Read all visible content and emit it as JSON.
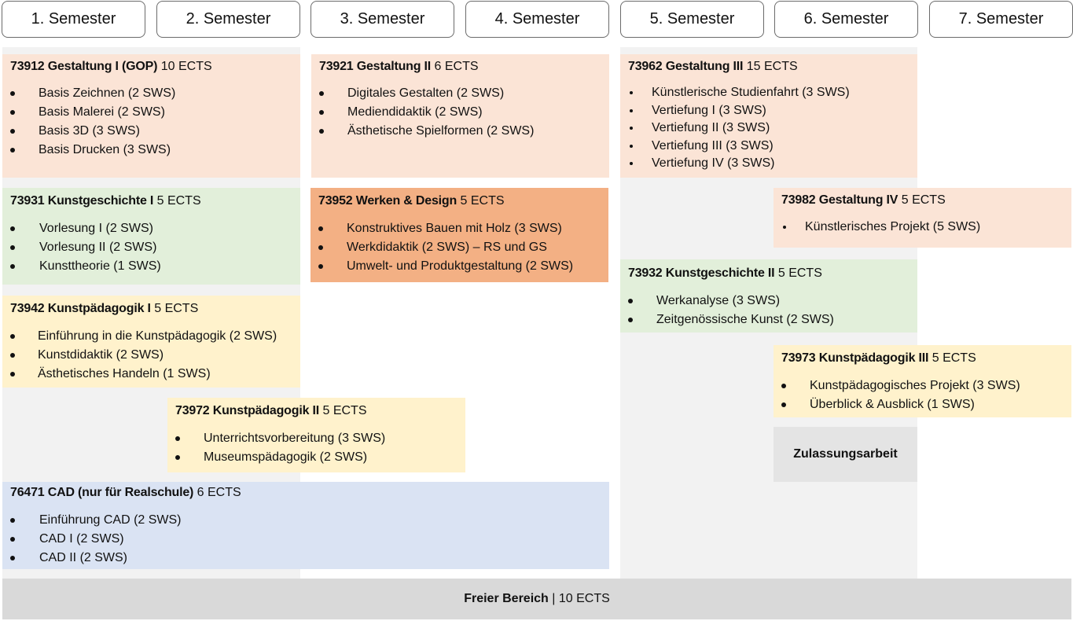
{
  "semesters": [
    "1. Semester",
    "2. Semester",
    "3. Semester",
    "4. Semester",
    "5. Semester",
    "6. Semester",
    "7. Semester"
  ],
  "modules": {
    "gestaltung1": {
      "title": "73912 Gestaltung I (GOP)",
      "ects": "10 ECTS",
      "items": [
        "Basis Zeichnen (2 SWS)",
        "Basis Malerei (2 SWS)",
        "Basis 3D (3 SWS)",
        "Basis Drucken (3 SWS)"
      ]
    },
    "gestaltung2": {
      "title": "73921 Gestaltung II",
      "ects": "6 ECTS",
      "items": [
        "Digitales Gestalten (2 SWS)",
        "Mediendidaktik (2 SWS)",
        "Ästhetische Spielformen (2 SWS)"
      ]
    },
    "gestaltung3": {
      "title": "73962 Gestaltung III",
      "ects": "15 ECTS",
      "items": [
        "Künstlerische Studienfahrt (3 SWS)",
        "Vertiefung I (3 SWS)",
        "Vertiefung II (3 SWS)",
        "Vertiefung III (3 SWS)",
        "Vertiefung IV (3 SWS)"
      ]
    },
    "kunstgeschichte1": {
      "title": "73931 Kunstgeschichte I",
      "ects": "5 ECTS",
      "items": [
        "Vorlesung I (2 SWS)",
        "Vorlesung II (2 SWS)",
        "Kunsttheorie (1 SWS)"
      ]
    },
    "werken": {
      "title": "73952 Werken & Design",
      "ects": "5 ECTS",
      "items": [
        "Konstruktives Bauen mit Holz (3 SWS)",
        "Werkdidaktik (2 SWS) – RS und GS",
        "Umwelt- und Produktgestaltung (2 SWS)"
      ]
    },
    "gestaltung4": {
      "title": "73982 Gestaltung IV",
      "ects": "5 ECTS",
      "items": [
        "Künstlerisches Projekt (5 SWS)"
      ]
    },
    "kunstgeschichte2": {
      "title": "73932 Kunstgeschichte II",
      "ects": "5 ECTS",
      "items": [
        "Werkanalyse (3 SWS)",
        "Zeitgenössische Kunst (2 SWS)"
      ]
    },
    "kunstpaed1": {
      "title": "73942 Kunstpädagogik I",
      "ects": "5 ECTS",
      "items": [
        "Einführung in die Kunstpädagogik (2 SWS)",
        "Kunstdidaktik  (2 SWS)",
        "Ästhetisches Handeln (1 SWS)"
      ]
    },
    "kunstpaed3": {
      "title": "73973 Kunstpädagogik III",
      "ects": "5 ECTS",
      "items": [
        "Kunstpädagogisches Projekt (3 SWS)",
        "Überblick & Ausblick (1 SWS)"
      ]
    },
    "kunstpaed2": {
      "title": "73972 Kunstpädagogik II",
      "ects": "5 ECTS",
      "items": [
        "Unterrichtsvorbereitung (3 SWS)",
        "Museumspädagogik (2 SWS)"
      ]
    },
    "cad": {
      "title": "76471 CAD (nur für Realschule)",
      "ects": "6 ECTS",
      "items": [
        "Einführung CAD (2 SWS)",
        "CAD I (2 SWS)",
        "CAD II (2 SWS)"
      ]
    }
  },
  "zulassungsarbeit": "Zulassungsarbeit",
  "freier_bereich": {
    "title": "Freier Bereich",
    "separator": "|",
    "ects": "10 ECTS"
  },
  "colors": {
    "orange_light": "#fbe4d6",
    "orange_dark": "#f3b084",
    "green": "#e2efda",
    "yellow": "#fff2cc",
    "blue": "#dae3f3",
    "grey": "#e4e4e4",
    "column_bg": "#f2f2f2",
    "footer": "#d9d9d9"
  }
}
